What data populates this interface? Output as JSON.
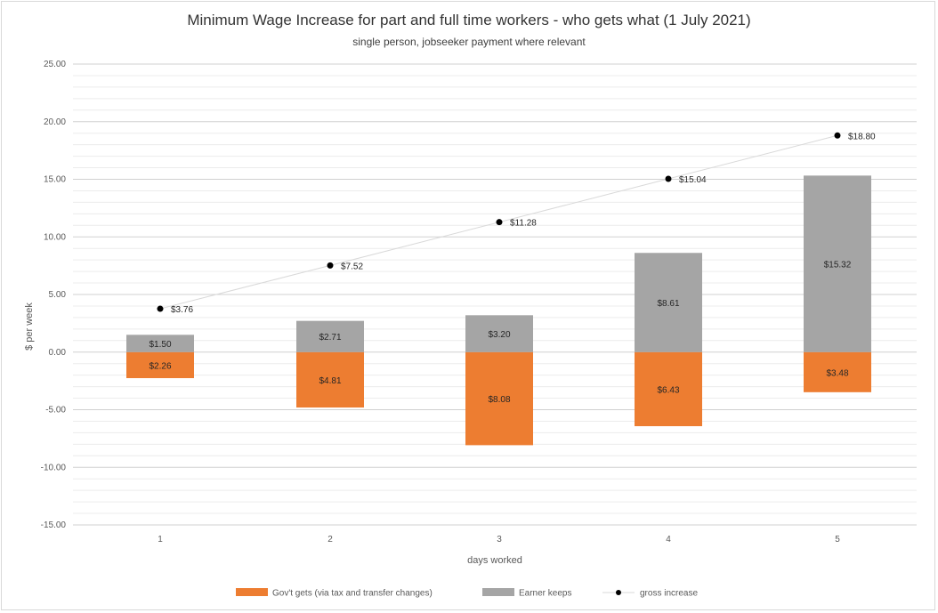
{
  "chart_data": {
    "type": "bar",
    "title": "Minimum Wage Increase for part and full time workers - who gets what (1 July 2021)",
    "subtitle": "single person, jobseeker payment where relevant",
    "xlabel": "days worked",
    "ylabel": "$ per week",
    "categories": [
      "1",
      "2",
      "3",
      "4",
      "5"
    ],
    "ylim": [
      -15,
      25
    ],
    "yticks": [
      "25.00",
      "20.00",
      "15.00",
      "10.00",
      "5.00",
      "0.00",
      "-5.00",
      "-10.00",
      "-15.00"
    ],
    "ytick_values": [
      25,
      20,
      15,
      10,
      5,
      0,
      -5,
      -10,
      -15
    ],
    "grid": true,
    "legend_position": "bottom",
    "series": [
      {
        "name": "Gov't gets (via tax and transfer changes)",
        "kind": "bar-stacked",
        "color": "#ed7d31",
        "values": [
          -2.26,
          -4.81,
          -8.08,
          -6.43,
          -3.48
        ],
        "labels": [
          "$2.26",
          "$4.81",
          "$8.08",
          "$6.43",
          "$3.48"
        ]
      },
      {
        "name": "Earner keeps",
        "kind": "bar-stacked",
        "color": "#a5a5a5",
        "values": [
          1.5,
          2.71,
          3.2,
          8.61,
          15.32
        ],
        "labels": [
          "$1.50",
          "$2.71",
          "$3.20",
          "$8.61",
          "$15.32"
        ]
      },
      {
        "name": "gross increase",
        "kind": "line-markers",
        "color": "#000000",
        "values": [
          3.76,
          7.52,
          11.28,
          15.04,
          18.8
        ],
        "labels": [
          "$3.76",
          "$7.52",
          "$11.28",
          "$15.04",
          "$18.80"
        ]
      }
    ]
  }
}
